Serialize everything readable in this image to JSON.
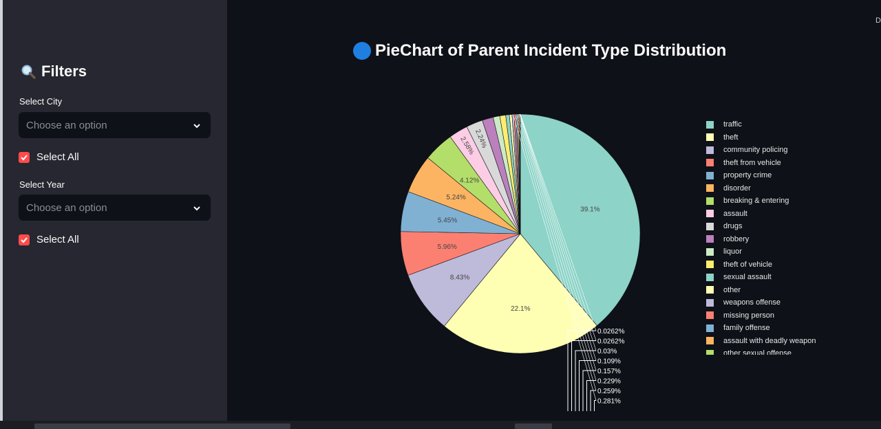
{
  "sidebar": {
    "title": "Filters",
    "city": {
      "label": "Select City",
      "placeholder": "Choose an option",
      "select_all_label": "Select All",
      "select_all_checked": true
    },
    "year": {
      "label": "Select Year",
      "placeholder": "Choose an option",
      "select_all_label": "Select All",
      "select_all_checked": true
    }
  },
  "main": {
    "title": "PieChart of Parent Incident Type Distribution",
    "corner_glyph": "D"
  },
  "colors": {
    "accent": "#ff4b4b",
    "title_dot": "#1e7fe0",
    "sidebar_bg": "#262730",
    "main_bg": "#0e1117"
  },
  "chart_data": {
    "type": "pie",
    "title": "PieChart of Parent Incident Type Distribution",
    "legend_position": "right",
    "slices": [
      {
        "label": "traffic",
        "value": 39.1,
        "value_label": "39.1%",
        "color": "#8dd3c7"
      },
      {
        "label": "theft",
        "value": 22.1,
        "value_label": "22.1%",
        "color": "#ffffb3"
      },
      {
        "label": "community policing",
        "value": 8.43,
        "value_label": "8.43%",
        "color": "#bebada"
      },
      {
        "label": "theft from vehicle",
        "value": 5.96,
        "value_label": "5.96%",
        "color": "#fb8072"
      },
      {
        "label": "property crime",
        "value": 5.45,
        "value_label": "5.45%",
        "color": "#80b1d3"
      },
      {
        "label": "disorder",
        "value": 5.24,
        "value_label": "5.24%",
        "color": "#fdb462"
      },
      {
        "label": "breaking & entering",
        "value": 4.12,
        "value_label": "4.12%",
        "color": "#b3de69"
      },
      {
        "label": "assault",
        "value": 2.58,
        "value_label": "2.58%",
        "color": "#fccde5"
      },
      {
        "label": "drugs",
        "value": 2.24,
        "value_label": "2.24%",
        "color": "#d9d9d9"
      },
      {
        "label": "robbery",
        "value": 1.5,
        "value_label": "",
        "color": "#bc80bd"
      },
      {
        "label": "liquor",
        "value": 0.9,
        "value_label": "",
        "color": "#ccebc5"
      },
      {
        "label": "theft of vehicle",
        "value": 0.8,
        "value_label": "",
        "color": "#ffed6f"
      },
      {
        "label": "sexual assault",
        "value": 0.5,
        "value_label": "",
        "color": "#8dd3c7"
      },
      {
        "label": "other",
        "value": 0.35,
        "value_label": "",
        "color": "#ffffb3"
      },
      {
        "label": "weapons offense",
        "value": 0.281,
        "value_label": "0.281%",
        "color": "#bebada"
      },
      {
        "label": "missing person",
        "value": 0.259,
        "value_label": "0.259%",
        "color": "#fb8072"
      },
      {
        "label": "family offense",
        "value": 0.229,
        "value_label": "0.229%",
        "color": "#80b1d3"
      },
      {
        "label": "assault with deadly weapon",
        "value": 0.157,
        "value_label": "0.157%",
        "color": "#fdb462"
      },
      {
        "label": "other sexual offense",
        "value": 0.109,
        "value_label": "0.109%",
        "color": "#b3de69"
      },
      {
        "label": "",
        "value": 0.03,
        "value_label": "0.03%",
        "color": "#fccde5"
      },
      {
        "label": "",
        "value": 0.0262,
        "value_label": "0.0262%",
        "color": "#d9d9d9"
      },
      {
        "label": "",
        "value": 0.0262,
        "value_label": "0.0262%",
        "color": "#bc80bd"
      }
    ]
  }
}
